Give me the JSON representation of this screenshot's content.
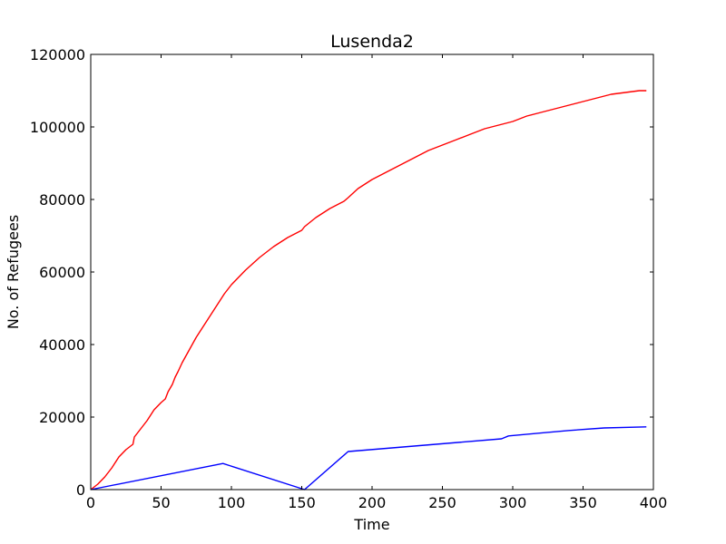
{
  "chart_data": {
    "type": "line",
    "title": "Lusenda2",
    "xlabel": "Time",
    "ylabel": "No. of Refugees",
    "xlim": [
      0,
      400
    ],
    "ylim": [
      0,
      120000
    ],
    "xticks": [
      0,
      50,
      100,
      150,
      200,
      250,
      300,
      350,
      400
    ],
    "yticks": [
      0,
      20000,
      40000,
      60000,
      80000,
      100000,
      120000
    ],
    "grid": false,
    "legend": "none",
    "series": [
      {
        "color": "#ff0000",
        "x": [
          0,
          5,
          10,
          15,
          20,
          25,
          30,
          31,
          35,
          40,
          45,
          50,
          53,
          55,
          58,
          60,
          62,
          65,
          70,
          75,
          80,
          85,
          90,
          95,
          100,
          110,
          120,
          130,
          140,
          150,
          152,
          160,
          170,
          180,
          183,
          190,
          200,
          210,
          220,
          230,
          240,
          250,
          260,
          270,
          280,
          290,
          300,
          310,
          320,
          330,
          340,
          350,
          360,
          370,
          380,
          390,
          395
        ],
        "y": [
          0,
          1500,
          3500,
          6000,
          9000,
          11000,
          12500,
          14500,
          16500,
          19000,
          22000,
          24000,
          25000,
          27000,
          29000,
          31000,
          32500,
          35000,
          38500,
          42000,
          45000,
          48000,
          51000,
          54000,
          56500,
          60500,
          64000,
          67000,
          69500,
          71500,
          72500,
          75000,
          77500,
          79500,
          80500,
          83000,
          85500,
          87500,
          89500,
          91500,
          93500,
          95000,
          96500,
          98000,
          99500,
          100500,
          101500,
          103000,
          104000,
          105000,
          106000,
          107000,
          108000,
          109000,
          109500,
          110000,
          110000
        ]
      },
      {
        "color": "#0000ff",
        "x": [
          0,
          94,
          152,
          183,
          292,
          297,
          320,
          340,
          365,
          395
        ],
        "y": [
          0,
          7200,
          0,
          10500,
          14000,
          14800,
          15600,
          16300,
          17000,
          17300
        ]
      }
    ]
  }
}
